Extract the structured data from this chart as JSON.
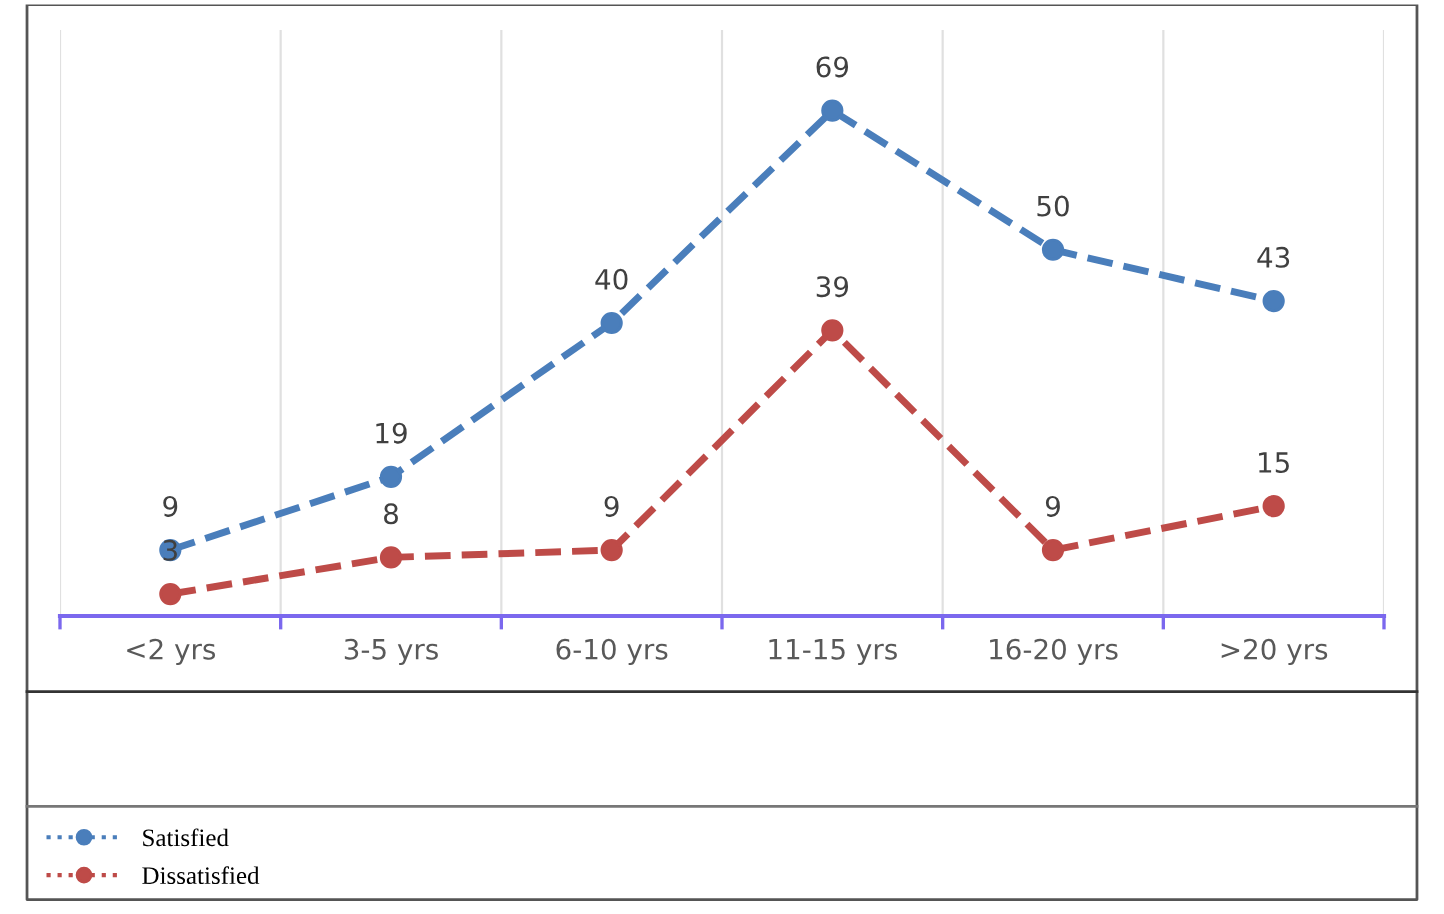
{
  "chart_data": {
    "type": "line",
    "categories": [
      "<2 yrs",
      "3-5 yrs",
      "6-10 yrs",
      "11-15 yrs",
      "16-20 yrs",
      ">20 yrs"
    ],
    "series": [
      {
        "name": "Satisfied",
        "color": "#4a7ebb",
        "values": [
          9,
          19,
          40,
          69,
          50,
          43
        ]
      },
      {
        "name": "Dissatisfied",
        "color": "#be4b48",
        "values": [
          3,
          8,
          9,
          39,
          9,
          15
        ]
      }
    ],
    "ylim": [
      0,
      80
    ],
    "tick_labels": "x",
    "data_labels": true,
    "marker": "circle",
    "line_style": "dashed",
    "grid": "x",
    "legend": "bottom"
  }
}
